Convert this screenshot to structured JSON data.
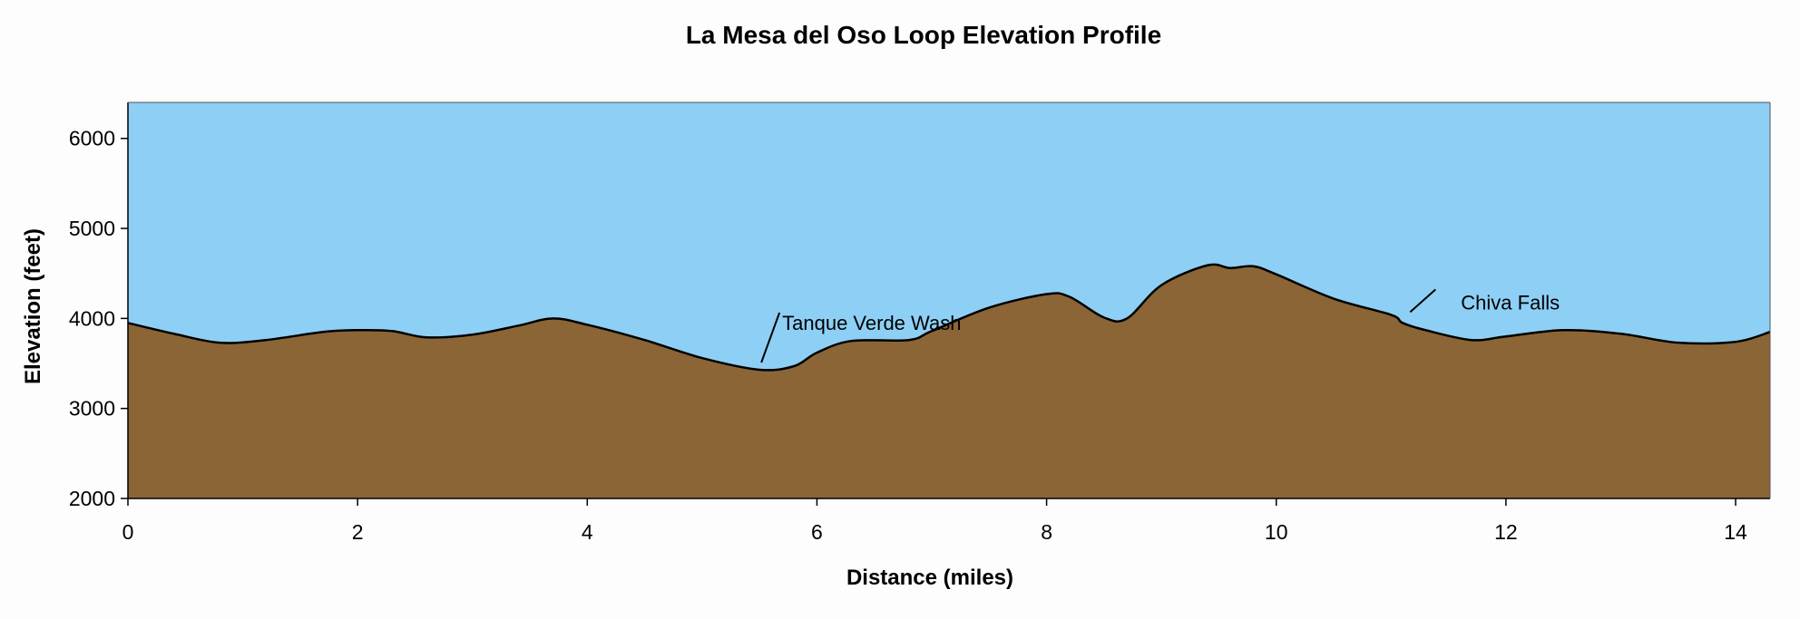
{
  "chart_data": {
    "type": "area",
    "title": "La Mesa del Oso Loop Elevation Profile",
    "xlabel": "Distance (miles)",
    "ylabel": "Elevation (feet)",
    "xlim": [
      0,
      14.3
    ],
    "ylim": [
      2000,
      6400
    ],
    "x_ticks": [
      0,
      2,
      4,
      6,
      8,
      10,
      12,
      14
    ],
    "y_ticks": [
      2000,
      3000,
      4000,
      5000,
      6000
    ],
    "grid": false,
    "colors": {
      "sky": "#8ecff5",
      "ground": "#8b6536",
      "line": "#000000"
    },
    "series": [
      {
        "x": [
          0,
          0.4,
          0.8,
          1.2,
          1.7,
          2.0,
          2.3,
          2.6,
          3.0,
          3.4,
          3.7,
          4.0,
          4.5,
          5.0,
          5.5,
          5.8,
          6.0,
          6.3,
          6.8,
          7.0,
          7.5,
          8.0,
          8.2,
          8.5,
          8.7,
          9.0,
          9.4,
          9.6,
          9.8,
          10.0,
          10.5,
          11.0,
          11.1,
          11.3,
          11.7,
          12.0,
          12.5,
          13.0,
          13.5,
          14.0,
          14.3
        ],
        "y": [
          3950,
          3830,
          3730,
          3760,
          3850,
          3870,
          3860,
          3790,
          3820,
          3920,
          4000,
          3930,
          3760,
          3560,
          3430,
          3470,
          3620,
          3750,
          3760,
          3860,
          4120,
          4270,
          4240,
          4010,
          4000,
          4370,
          4590,
          4560,
          4580,
          4490,
          4220,
          4040,
          3950,
          3870,
          3760,
          3800,
          3870,
          3830,
          3730,
          3740,
          3850
        ]
      }
    ],
    "annotations": [
      {
        "text": "Tanque Verde Wash",
        "x": 5.5,
        "y": 3430
      },
      {
        "text": "Chiva Falls",
        "x": 11.15,
        "y": 3990
      }
    ]
  }
}
